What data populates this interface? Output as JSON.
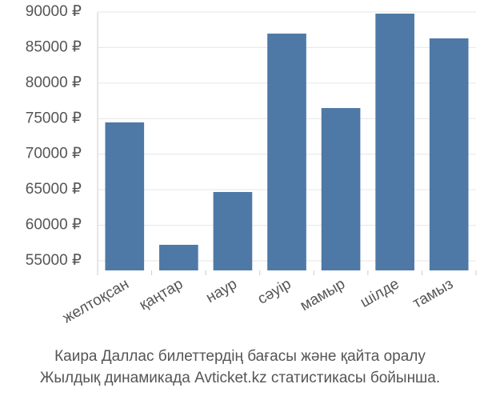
{
  "chart_data": {
    "type": "bar",
    "title": [
      "Каира Даллас билеттердің бағасы және қайта оралу",
      "Жылдық динамикада Avticket.kz статистикасы бойынша."
    ],
    "categories": [
      "желтоқсан",
      "қаңтар",
      "наур",
      "сәуір",
      "мамыр",
      "шілде",
      "тамыз"
    ],
    "values": [
      74470,
      57250,
      64680,
      86960,
      76490,
      89770,
      86290
    ],
    "color": "#4e79a7",
    "ylim": [
      53650,
      90000
    ],
    "yticks": [
      {
        "value": 55000,
        "label": "55000 ₽"
      },
      {
        "value": 60000,
        "label": "60000 ₽"
      },
      {
        "value": 65000,
        "label": "65000 ₽"
      },
      {
        "value": 70000,
        "label": "70000 ₽"
      },
      {
        "value": 75000,
        "label": "75000 ₽"
      },
      {
        "value": 80000,
        "label": "80000 ₽"
      },
      {
        "value": 85000,
        "label": "85000 ₽"
      },
      {
        "value": 90000,
        "label": "90000 ₽"
      }
    ],
    "grid": true
  }
}
